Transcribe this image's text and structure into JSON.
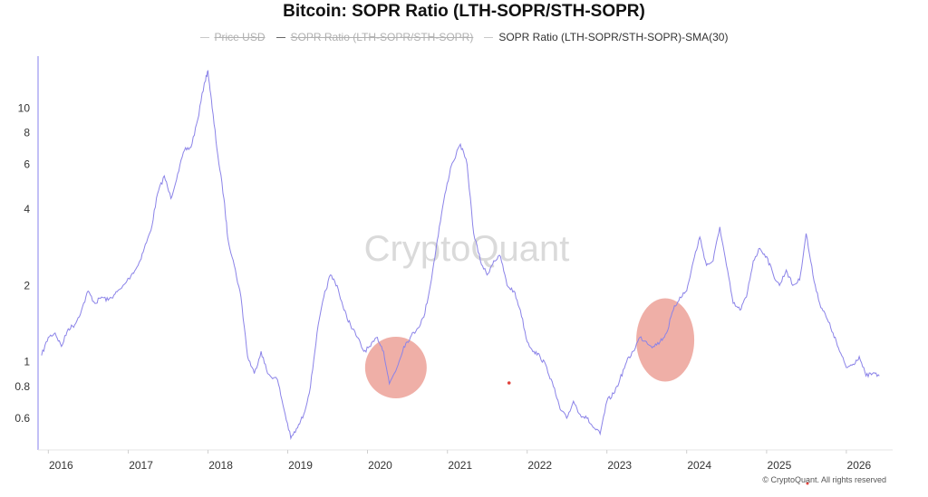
{
  "title": "Bitcoin: SOPR Ratio (LTH-SOPR/STH-SOPR)",
  "legend": [
    {
      "label": "Price USD",
      "state": "off"
    },
    {
      "label": "SOPR Ratio (LTH-SOPR/STH-SOPR)",
      "state": "off"
    },
    {
      "label": "SOPR Ratio (LTH-SOPR/STH-SOPR)-SMA(30)",
      "state": "on"
    }
  ],
  "watermark": "CryptoQuant",
  "footer": "© CryptoQuant. All rights reserved",
  "colors": {
    "line": "#8b83e8",
    "circle": "#e9948a",
    "axis": "#9a95f0",
    "dot": "#e0413a"
  },
  "chart_data": {
    "type": "line",
    "title": "Bitcoin: SOPR Ratio (LTH-SOPR/STH-SOPR)",
    "y_scale": "log",
    "ylim": [
      0.45,
      16
    ],
    "xlim": [
      "2015-11-15",
      "2026-08-01"
    ],
    "y_ticks": [
      0.6,
      0.8,
      1,
      2,
      4,
      6,
      8,
      10
    ],
    "y_tick_labels": [
      "0.6",
      "0.8",
      "1",
      "2",
      "4",
      "6",
      "8",
      "10"
    ],
    "x_ticks": [
      "2016-01-01",
      "2017-01-01",
      "2018-01-01",
      "2019-01-01",
      "2020-01-01",
      "2021-01-01",
      "2022-01-01",
      "2023-01-01",
      "2024-01-01",
      "2025-01-01",
      "2026-01-01"
    ],
    "x_tick_labels": [
      "2016",
      "2017",
      "2018",
      "2019",
      "2020",
      "2021",
      "2022",
      "2023",
      "2024",
      "2025",
      "2026"
    ],
    "grid": false,
    "legend_position": "top-center",
    "series": [
      {
        "name": "SOPR Ratio (LTH-SOPR/STH-SOPR)-SMA(30)",
        "points": [
          [
            "2015-12-01",
            1.06
          ],
          [
            "2016-01-01",
            1.25
          ],
          [
            "2016-02-01",
            1.3
          ],
          [
            "2016-03-01",
            1.15
          ],
          [
            "2016-04-01",
            1.35
          ],
          [
            "2016-05-01",
            1.4
          ],
          [
            "2016-06-01",
            1.6
          ],
          [
            "2016-07-01",
            1.9
          ],
          [
            "2016-08-01",
            1.7
          ],
          [
            "2016-09-01",
            1.8
          ],
          [
            "2016-10-01",
            1.75
          ],
          [
            "2016-11-01",
            1.85
          ],
          [
            "2016-12-01",
            1.95
          ],
          [
            "2017-01-15",
            2.2
          ],
          [
            "2017-02-15",
            2.4
          ],
          [
            "2017-03-15",
            2.8
          ],
          [
            "2017-04-15",
            3.3
          ],
          [
            "2017-05-15",
            4.6
          ],
          [
            "2017-06-15",
            5.4
          ],
          [
            "2017-07-15",
            4.4
          ],
          [
            "2017-08-15",
            5.5
          ],
          [
            "2017-09-15",
            6.8
          ],
          [
            "2017-10-15",
            7.0
          ],
          [
            "2017-11-15",
            9.0
          ],
          [
            "2017-12-15",
            12.5
          ],
          [
            "2018-01-01",
            14.0
          ],
          [
            "2018-01-20",
            10.0
          ],
          [
            "2018-02-15",
            6.5
          ],
          [
            "2018-03-15",
            4.4
          ],
          [
            "2018-04-01",
            3.1
          ],
          [
            "2018-05-01",
            2.4
          ],
          [
            "2018-06-01",
            1.8
          ],
          [
            "2018-07-01",
            1.05
          ],
          [
            "2018-08-01",
            0.9
          ],
          [
            "2018-09-01",
            1.1
          ],
          [
            "2018-10-01",
            0.9
          ],
          [
            "2018-11-15",
            0.85
          ],
          [
            "2018-12-15",
            0.65
          ],
          [
            "2019-01-15",
            0.5
          ],
          [
            "2019-02-15",
            0.55
          ],
          [
            "2019-03-15",
            0.62
          ],
          [
            "2019-04-15",
            0.8
          ],
          [
            "2019-05-15",
            1.3
          ],
          [
            "2019-06-15",
            1.8
          ],
          [
            "2019-07-15",
            2.2
          ],
          [
            "2019-08-15",
            2.0
          ],
          [
            "2019-09-15",
            1.6
          ],
          [
            "2019-10-15",
            1.4
          ],
          [
            "2019-11-15",
            1.25
          ],
          [
            "2019-12-15",
            1.1
          ],
          [
            "2020-01-15",
            1.15
          ],
          [
            "2020-02-15",
            1.25
          ],
          [
            "2020-03-15",
            1.1
          ],
          [
            "2020-04-10",
            0.82
          ],
          [
            "2020-05-15",
            0.95
          ],
          [
            "2020-06-15",
            1.15
          ],
          [
            "2020-07-15",
            1.25
          ],
          [
            "2020-08-15",
            1.35
          ],
          [
            "2020-09-15",
            1.5
          ],
          [
            "2020-10-15",
            2.0
          ],
          [
            "2020-11-15",
            3.0
          ],
          [
            "2020-12-15",
            4.3
          ],
          [
            "2021-01-15",
            5.8
          ],
          [
            "2021-03-01",
            7.2
          ],
          [
            "2021-04-01",
            6.0
          ],
          [
            "2021-05-01",
            3.2
          ],
          [
            "2021-06-01",
            2.5
          ],
          [
            "2021-07-01",
            2.2
          ],
          [
            "2021-08-01",
            2.5
          ],
          [
            "2021-09-01",
            2.6
          ],
          [
            "2021-10-01",
            2.0
          ],
          [
            "2021-11-01",
            1.9
          ],
          [
            "2021-12-01",
            1.6
          ],
          [
            "2022-01-01",
            1.2
          ],
          [
            "2022-02-01",
            1.1
          ],
          [
            "2022-03-01",
            1.05
          ],
          [
            "2022-04-01",
            0.95
          ],
          [
            "2022-05-01",
            0.8
          ],
          [
            "2022-06-01",
            0.65
          ],
          [
            "2022-07-01",
            0.6
          ],
          [
            "2022-08-01",
            0.7
          ],
          [
            "2022-09-01",
            0.62
          ],
          [
            "2022-10-01",
            0.6
          ],
          [
            "2022-11-01",
            0.55
          ],
          [
            "2022-12-01",
            0.52
          ],
          [
            "2023-01-01",
            0.7
          ],
          [
            "2023-02-01",
            0.75
          ],
          [
            "2023-03-01",
            0.85
          ],
          [
            "2023-04-01",
            1.0
          ],
          [
            "2023-05-01",
            1.1
          ],
          [
            "2023-06-01",
            1.25
          ],
          [
            "2023-07-01",
            1.2
          ],
          [
            "2023-08-01",
            1.15
          ],
          [
            "2023-09-01",
            1.2
          ],
          [
            "2023-10-01",
            1.3
          ],
          [
            "2023-11-01",
            1.6
          ],
          [
            "2023-12-01",
            1.8
          ],
          [
            "2024-01-01",
            1.9
          ],
          [
            "2024-02-01",
            2.5
          ],
          [
            "2024-03-01",
            3.1
          ],
          [
            "2024-04-01",
            2.4
          ],
          [
            "2024-05-01",
            2.5
          ],
          [
            "2024-06-01",
            3.4
          ],
          [
            "2024-07-01",
            2.4
          ],
          [
            "2024-08-01",
            1.7
          ],
          [
            "2024-09-01",
            1.6
          ],
          [
            "2024-10-01",
            1.8
          ],
          [
            "2024-11-01",
            2.5
          ],
          [
            "2024-12-01",
            2.8
          ],
          [
            "2025-01-01",
            2.6
          ],
          [
            "2025-02-01",
            2.2
          ],
          [
            "2025-03-01",
            2.0
          ],
          [
            "2025-04-01",
            2.3
          ],
          [
            "2025-05-01",
            2.0
          ],
          [
            "2025-06-01",
            2.1
          ],
          [
            "2025-07-01",
            3.2
          ],
          [
            "2025-08-01",
            2.2
          ],
          [
            "2025-09-01",
            1.7
          ],
          [
            "2025-10-01",
            1.5
          ],
          [
            "2025-11-01",
            1.3
          ],
          [
            "2025-12-01",
            1.1
          ],
          [
            "2026-01-01",
            0.95
          ],
          [
            "2026-02-01",
            0.98
          ],
          [
            "2026-03-01",
            1.05
          ],
          [
            "2026-04-01",
            0.88
          ],
          [
            "2026-05-01",
            0.9
          ],
          [
            "2026-06-01",
            0.88
          ]
        ]
      }
    ],
    "highlights": [
      {
        "center": [
          "2020-05-10",
          0.95
        ]
      },
      {
        "center": [
          "2023-09-25",
          1.22
        ]
      }
    ]
  }
}
